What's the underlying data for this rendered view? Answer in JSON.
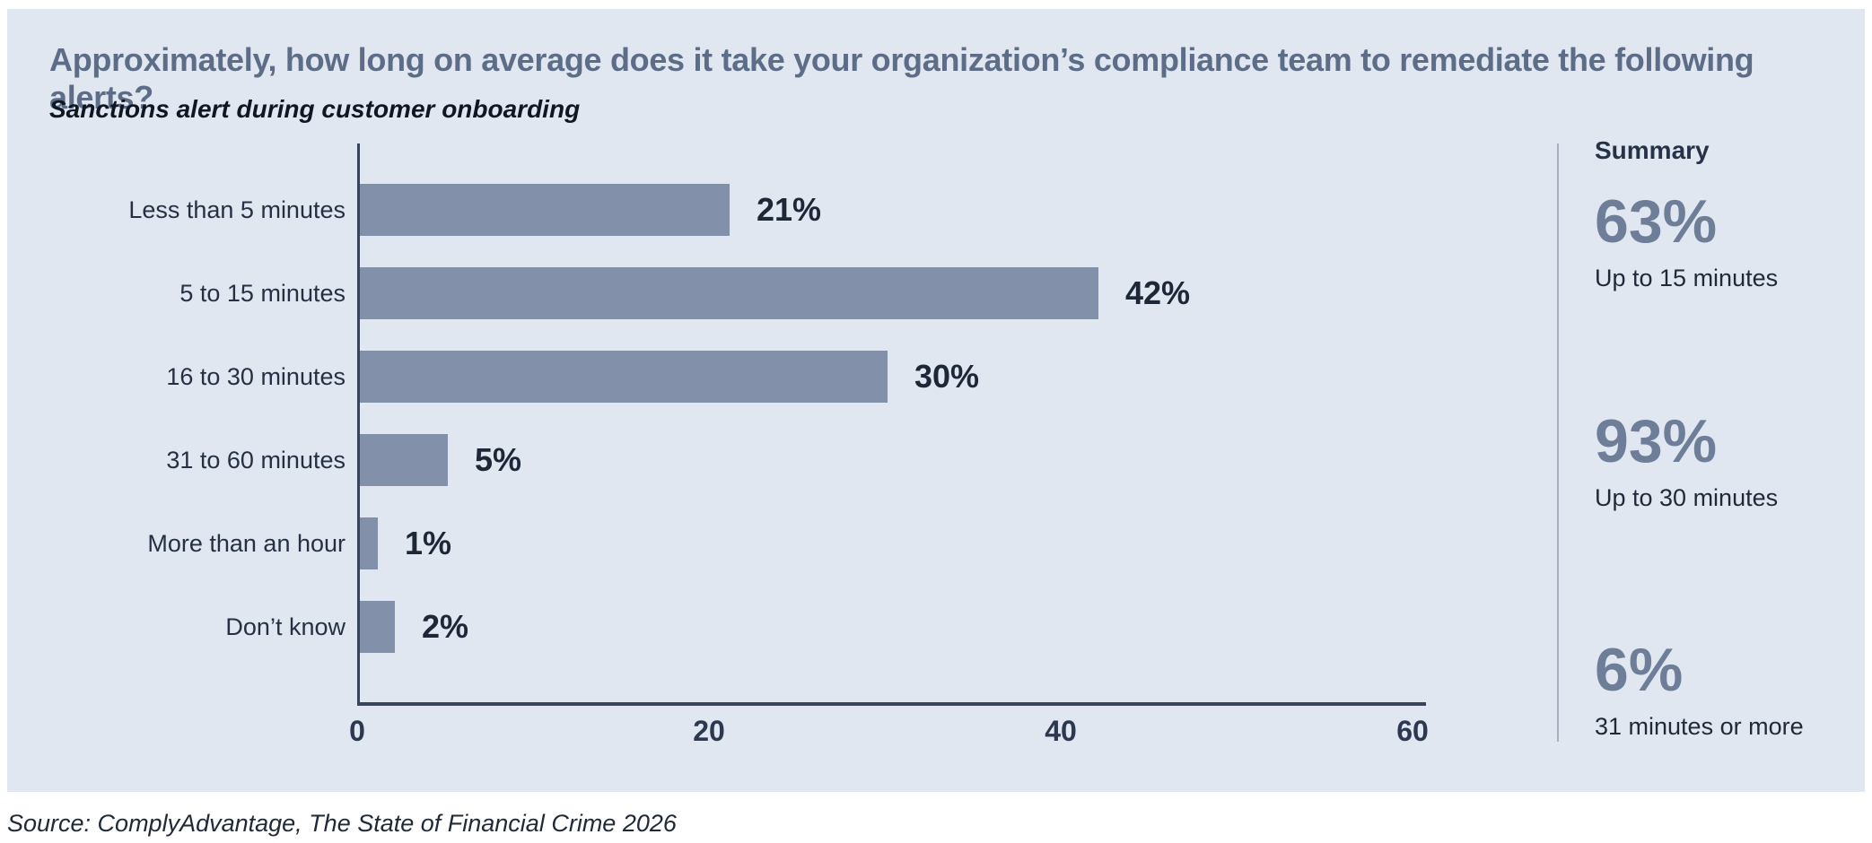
{
  "header": {
    "title": "Approximately, how long on average does it take your organization’s compliance team to remediate the following alerts?",
    "subtitle": "Sanctions alert during customer onboarding"
  },
  "chart_data": {
    "type": "bar",
    "orientation": "horizontal",
    "title": "Approximately, how long on average does it take your organization’s compliance team to remediate the following alerts?",
    "subtitle": "Sanctions alert during customer onboarding",
    "categories": [
      "Less than 5 minutes",
      "5 to 15 minutes",
      "16 to 30 minutes",
      "31 to 60 minutes",
      "More than an hour",
      "Don’t know"
    ],
    "values": [
      21,
      42,
      30,
      5,
      1,
      2
    ],
    "value_labels": [
      "21%",
      "42%",
      "30%",
      "5%",
      "1%",
      "2%"
    ],
    "xlabel": "",
    "ylabel": "",
    "xlim": [
      0,
      60
    ],
    "x_ticks": [
      0,
      20,
      40,
      60
    ],
    "grid": false,
    "legend": "none"
  },
  "summary": {
    "title": "Summary",
    "items": [
      {
        "value": "63%",
        "label": "Up to 15 minutes"
      },
      {
        "value": "93%",
        "label": "Up to 30 minutes"
      },
      {
        "value": "6%",
        "label": "31 minutes or more"
      }
    ]
  },
  "footer": {
    "source": "Source: ComplyAdvantage, The State of Financial Crime 2026"
  },
  "colors": {
    "page_bg": "#FFFFFF",
    "card_bg": "#E1E7F1",
    "bar": "#8290A9",
    "title_text": "#5D6D87",
    "value_text": "#1D2737",
    "axis_line": "#39455B",
    "summary_value": "#6F7E98",
    "divider": "#A9B2C2"
  }
}
